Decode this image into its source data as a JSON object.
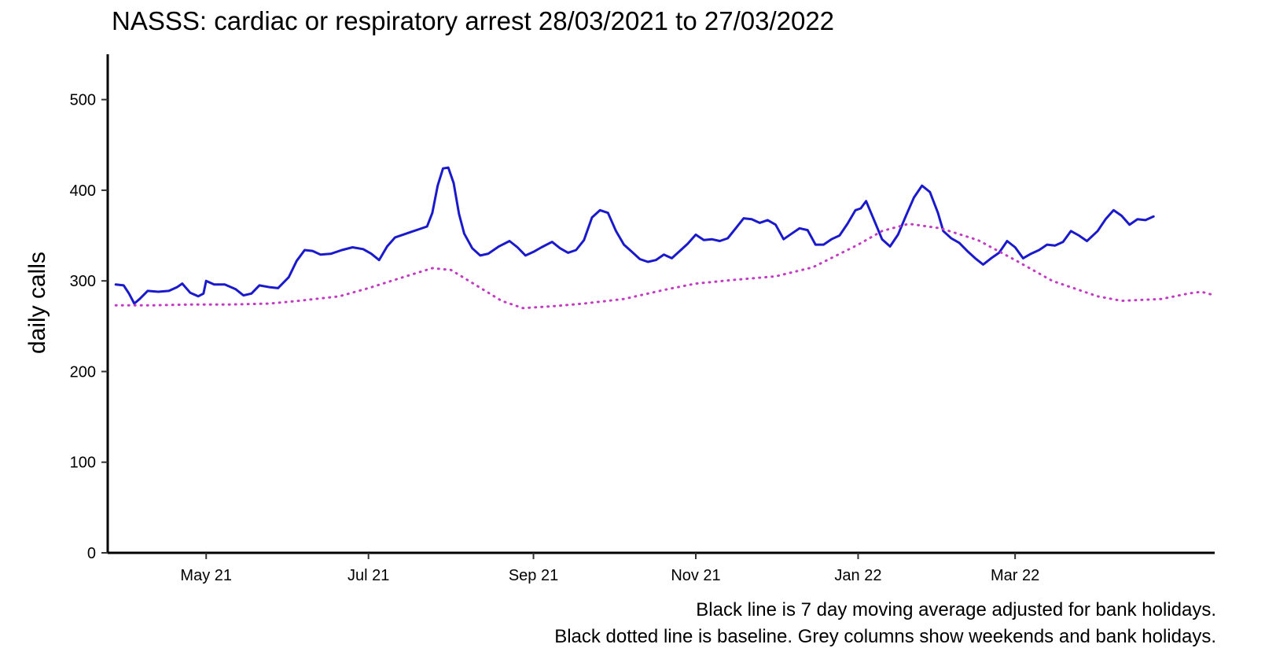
{
  "chart_data": {
    "type": "line",
    "title": "NASSS: cardiac or respiratory arrest 28/03/2021 to 27/03/2022",
    "xlabel": "",
    "ylabel": "daily calls",
    "ylim": [
      0,
      550
    ],
    "yticks": [
      0,
      100,
      200,
      300,
      400,
      500
    ],
    "xticks": [
      {
        "label": "May 21",
        "date": "2021-05-01"
      },
      {
        "label": "Jul 21",
        "date": "2021-07-01"
      },
      {
        "label": "Sep 21",
        "date": "2021-09-01"
      },
      {
        "label": "Nov 21",
        "date": "2021-11-01"
      },
      {
        "label": "Jan 22",
        "date": "2022-01-01"
      },
      {
        "label": "Mar 22",
        "date": "2022-03-01"
      }
    ],
    "xlim": [
      "2021-03-25",
      "2022-05-15"
    ],
    "grid": false,
    "series": [
      {
        "color": "#1a1acc",
        "style": "solid",
        "points": [
          [
            "2021-03-28",
            296
          ],
          [
            "2021-03-31",
            295
          ],
          [
            "2021-04-02",
            286
          ],
          [
            "2021-04-04",
            275
          ],
          [
            "2021-04-06",
            280
          ],
          [
            "2021-04-09",
            289
          ],
          [
            "2021-04-13",
            288
          ],
          [
            "2021-04-17",
            289
          ],
          [
            "2021-04-20",
            293
          ],
          [
            "2021-04-22",
            297
          ],
          [
            "2021-04-25",
            287
          ],
          [
            "2021-04-28",
            283
          ],
          [
            "2021-04-30",
            286
          ],
          [
            "2021-05-01",
            300
          ],
          [
            "2021-05-04",
            296
          ],
          [
            "2021-05-08",
            296
          ],
          [
            "2021-05-12",
            291
          ],
          [
            "2021-05-15",
            284
          ],
          [
            "2021-05-18",
            286
          ],
          [
            "2021-05-21",
            295
          ],
          [
            "2021-05-25",
            293
          ],
          [
            "2021-05-28",
            292
          ],
          [
            "2021-06-01",
            304
          ],
          [
            "2021-06-04",
            322
          ],
          [
            "2021-06-07",
            334
          ],
          [
            "2021-06-10",
            333
          ],
          [
            "2021-06-13",
            329
          ],
          [
            "2021-06-17",
            330
          ],
          [
            "2021-06-21",
            334
          ],
          [
            "2021-06-25",
            337
          ],
          [
            "2021-06-29",
            335
          ],
          [
            "2021-07-02",
            330
          ],
          [
            "2021-07-05",
            323
          ],
          [
            "2021-07-08",
            338
          ],
          [
            "2021-07-11",
            348
          ],
          [
            "2021-07-14",
            351
          ],
          [
            "2021-07-17",
            354
          ],
          [
            "2021-07-20",
            357
          ],
          [
            "2021-07-23",
            360
          ],
          [
            "2021-07-25",
            375
          ],
          [
            "2021-07-27",
            405
          ],
          [
            "2021-07-29",
            424
          ],
          [
            "2021-07-31",
            425
          ],
          [
            "2021-08-02",
            408
          ],
          [
            "2021-08-04",
            374
          ],
          [
            "2021-08-06",
            352
          ],
          [
            "2021-08-09",
            336
          ],
          [
            "2021-08-12",
            328
          ],
          [
            "2021-08-15",
            330
          ],
          [
            "2021-08-19",
            338
          ],
          [
            "2021-08-23",
            344
          ],
          [
            "2021-08-26",
            337
          ],
          [
            "2021-08-29",
            328
          ],
          [
            "2021-09-01",
            332
          ],
          [
            "2021-09-04",
            337
          ],
          [
            "2021-09-08",
            343
          ],
          [
            "2021-09-11",
            336
          ],
          [
            "2021-09-14",
            331
          ],
          [
            "2021-09-17",
            334
          ],
          [
            "2021-09-20",
            345
          ],
          [
            "2021-09-23",
            370
          ],
          [
            "2021-09-26",
            378
          ],
          [
            "2021-09-29",
            375
          ],
          [
            "2021-10-02",
            355
          ],
          [
            "2021-10-05",
            340
          ],
          [
            "2021-10-08",
            332
          ],
          [
            "2021-10-11",
            324
          ],
          [
            "2021-10-14",
            321
          ],
          [
            "2021-10-17",
            323
          ],
          [
            "2021-10-20",
            329
          ],
          [
            "2021-10-23",
            325
          ],
          [
            "2021-10-26",
            333
          ],
          [
            "2021-10-29",
            341
          ],
          [
            "2021-11-01",
            351
          ],
          [
            "2021-11-04",
            345
          ],
          [
            "2021-11-07",
            346
          ],
          [
            "2021-11-10",
            344
          ],
          [
            "2021-11-13",
            347
          ],
          [
            "2021-11-16",
            358
          ],
          [
            "2021-11-19",
            369
          ],
          [
            "2021-11-22",
            368
          ],
          [
            "2021-11-25",
            364
          ],
          [
            "2021-11-28",
            367
          ],
          [
            "2021-12-01",
            362
          ],
          [
            "2021-12-04",
            346
          ],
          [
            "2021-12-07",
            352
          ],
          [
            "2021-12-10",
            358
          ],
          [
            "2021-12-13",
            356
          ],
          [
            "2021-12-16",
            340
          ],
          [
            "2021-12-19",
            340
          ],
          [
            "2021-12-22",
            346
          ],
          [
            "2021-12-25",
            350
          ],
          [
            "2021-12-28",
            363
          ],
          [
            "2021-12-31",
            378
          ],
          [
            "2022-01-02",
            380
          ],
          [
            "2022-01-04",
            388
          ],
          [
            "2022-01-07",
            367
          ],
          [
            "2022-01-10",
            346
          ],
          [
            "2022-01-13",
            338
          ],
          [
            "2022-01-16",
            351
          ],
          [
            "2022-01-19",
            372
          ],
          [
            "2022-01-22",
            392
          ],
          [
            "2022-01-25",
            405
          ],
          [
            "2022-01-28",
            398
          ],
          [
            "2022-01-31",
            375
          ],
          [
            "2022-02-02",
            355
          ],
          [
            "2022-02-05",
            347
          ],
          [
            "2022-02-08",
            342
          ],
          [
            "2022-02-11",
            333
          ],
          [
            "2022-02-14",
            325
          ],
          [
            "2022-02-17",
            318
          ],
          [
            "2022-02-20",
            325
          ],
          [
            "2022-02-23",
            331
          ],
          [
            "2022-02-26",
            344
          ],
          [
            "2022-03-01",
            337
          ],
          [
            "2022-03-04",
            325
          ],
          [
            "2022-03-07",
            330
          ],
          [
            "2022-03-10",
            334
          ],
          [
            "2022-03-13",
            340
          ],
          [
            "2022-03-16",
            339
          ],
          [
            "2022-03-19",
            343
          ],
          [
            "2022-03-22",
            355
          ],
          [
            "2022-03-25",
            350
          ],
          [
            "2022-03-28",
            344
          ],
          [
            "2022-04-01",
            355
          ],
          [
            "2022-04-04",
            368
          ],
          [
            "2022-04-07",
            378
          ],
          [
            "2022-04-10",
            372
          ],
          [
            "2022-04-13",
            362
          ],
          [
            "2022-04-16",
            368
          ],
          [
            "2022-04-19",
            367
          ],
          [
            "2022-04-22",
            371
          ]
        ]
      },
      {
        "color": "#c23bc2",
        "style": "dotted",
        "points": [
          [
            "2021-03-28",
            273
          ],
          [
            "2021-04-10",
            273
          ],
          [
            "2021-04-25",
            274
          ],
          [
            "2021-05-10",
            274
          ],
          [
            "2021-05-25",
            275
          ],
          [
            "2021-06-05",
            278
          ],
          [
            "2021-06-20",
            283
          ],
          [
            "2021-07-01",
            292
          ],
          [
            "2021-07-15",
            305
          ],
          [
            "2021-07-25",
            314
          ],
          [
            "2021-08-01",
            312
          ],
          [
            "2021-08-10",
            296
          ],
          [
            "2021-08-20",
            278
          ],
          [
            "2021-08-28",
            270
          ],
          [
            "2021-09-08",
            272
          ],
          [
            "2021-09-20",
            275
          ],
          [
            "2021-10-05",
            280
          ],
          [
            "2021-10-20",
            290
          ],
          [
            "2021-11-01",
            297
          ],
          [
            "2021-11-15",
            301
          ],
          [
            "2021-12-01",
            305
          ],
          [
            "2021-12-15",
            315
          ],
          [
            "2022-01-01",
            340
          ],
          [
            "2022-01-10",
            355
          ],
          [
            "2022-01-20",
            363
          ],
          [
            "2022-02-01",
            358
          ],
          [
            "2022-02-15",
            345
          ],
          [
            "2022-03-01",
            323
          ],
          [
            "2022-03-15",
            300
          ],
          [
            "2022-04-01",
            283
          ],
          [
            "2022-04-10",
            278
          ],
          [
            "2022-04-25",
            280
          ],
          [
            "2022-05-05",
            286
          ],
          [
            "2022-05-10",
            288
          ],
          [
            "2022-05-15",
            284
          ]
        ]
      }
    ],
    "caption_lines": [
      "Black line is 7 day moving average adjusted for bank holidays.",
      "Black dotted line is baseline. Grey columns show weekends and bank holidays."
    ]
  }
}
